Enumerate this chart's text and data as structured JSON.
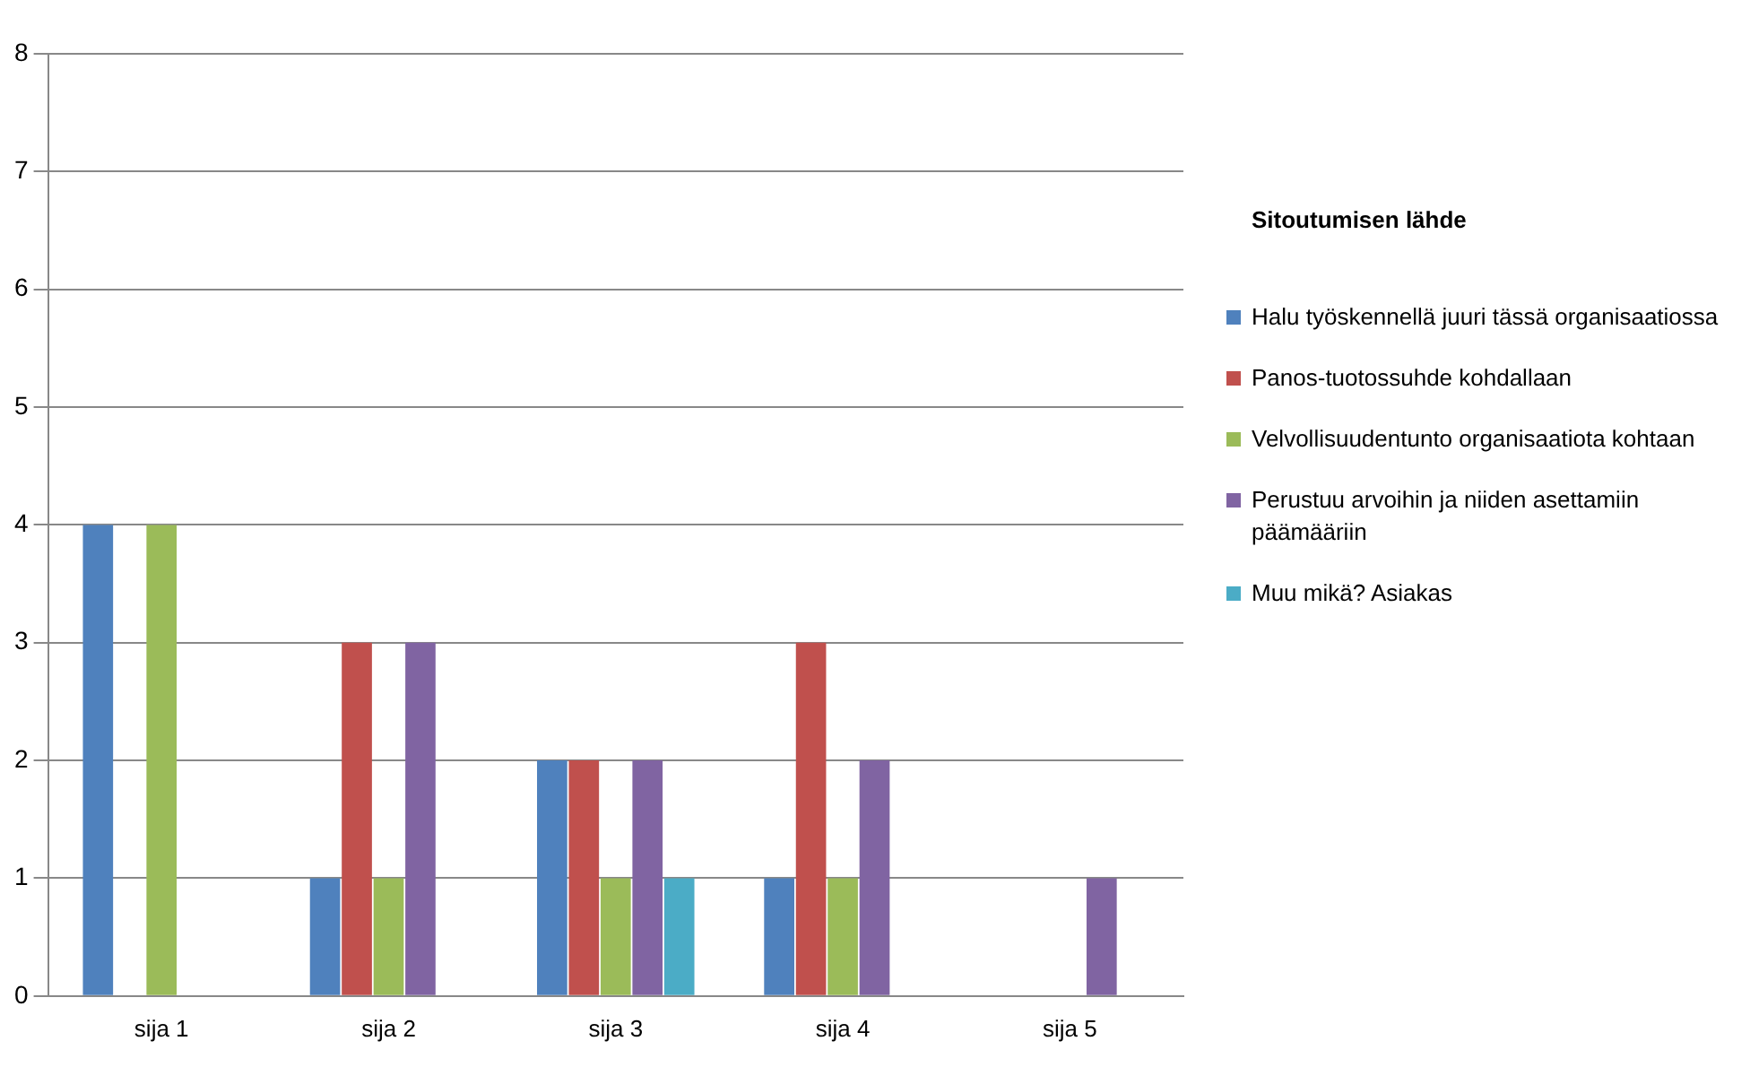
{
  "chart_data": {
    "type": "bar",
    "legend_title": "Sitoutumisen lähde",
    "categories": [
      "sija 1",
      "sija 2",
      "sija 3",
      "sija 4",
      "sija 5"
    ],
    "series": [
      {
        "name": "Halu työskennellä juuri tässä organisaatiossa",
        "color": "#4f81bd",
        "values": [
          4,
          1,
          2,
          1,
          0
        ]
      },
      {
        "name": "Panos-tuotossuhde kohdallaan",
        "color": "#c0504d",
        "values": [
          0,
          3,
          2,
          3,
          0
        ]
      },
      {
        "name": "Velvollisuudentunto organisaatiota kohtaan",
        "color": "#9bbb59",
        "values": [
          4,
          1,
          1,
          1,
          0
        ]
      },
      {
        "name": "Perustuu arvoihin ja niiden asettamiin päämääriin",
        "color": "#8064a2",
        "values": [
          0,
          3,
          2,
          2,
          1
        ]
      },
      {
        "name": "Muu mikä? Asiakas",
        "color": "#4bacc6",
        "values": [
          0,
          0,
          1,
          0,
          0
        ]
      }
    ],
    "ylim": [
      0,
      8
    ],
    "yticks": [
      0,
      1,
      2,
      3,
      4,
      5,
      6,
      7,
      8
    ],
    "grid": "y",
    "legend": "right"
  }
}
